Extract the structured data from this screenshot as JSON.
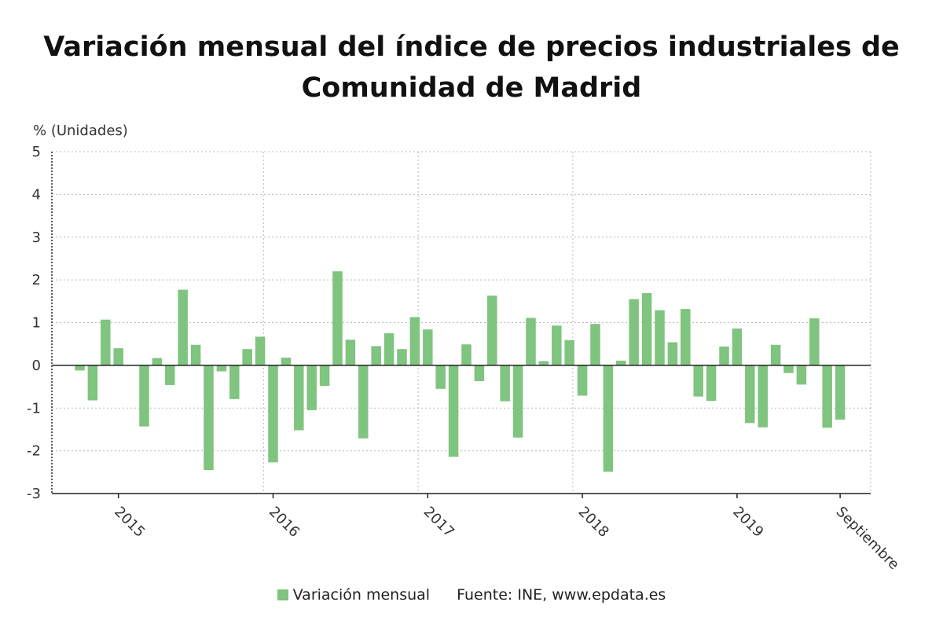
{
  "title_line1": "Variación mensual del índice de precios industriales de",
  "title_line2": "Comunidad de Madrid",
  "colors": {
    "bar": "#7fc47f",
    "grid": "#b8b8b8",
    "axis": "#222222"
  },
  "legend": {
    "label": "Variación mensual",
    "source": "Fuente: INE, www.epdata.es"
  },
  "chart_data": {
    "type": "bar",
    "title": "Variación mensual del índice de precios industriales de Comunidad de Madrid",
    "ylabel": "% (Unidades)",
    "ylim": [
      -3,
      5
    ],
    "yticks": [
      5,
      4,
      3,
      2,
      1,
      0,
      -1,
      -2,
      -3
    ],
    "grid": true,
    "legend_position": "bottom",
    "x_tick_labels": [
      "2015",
      "2016",
      "2017",
      "2018",
      "2019",
      "Septiembre"
    ],
    "x_tick_months": [
      "2015-01",
      "2016-01",
      "2017-01",
      "2018-01",
      "2019-01",
      "2019-09"
    ],
    "categories": [
      "2014-10",
      "2014-11",
      "2014-12",
      "2015-01",
      "2015-02",
      "2015-03",
      "2015-04",
      "2015-05",
      "2015-06",
      "2015-07",
      "2015-08",
      "2015-09",
      "2015-10",
      "2015-11",
      "2015-12",
      "2016-01",
      "2016-02",
      "2016-03",
      "2016-04",
      "2016-05",
      "2016-06",
      "2016-07",
      "2016-08",
      "2016-09",
      "2016-10",
      "2016-11",
      "2016-12",
      "2017-01",
      "2017-02",
      "2017-03",
      "2017-04",
      "2017-05",
      "2017-06",
      "2017-07",
      "2017-08",
      "2017-09",
      "2017-10",
      "2017-11",
      "2017-12",
      "2018-01",
      "2018-02",
      "2018-03",
      "2018-04",
      "2018-05",
      "2018-06",
      "2018-07",
      "2018-08",
      "2018-09",
      "2018-10",
      "2018-11",
      "2018-12",
      "2019-01",
      "2019-02",
      "2019-03",
      "2019-04",
      "2019-05",
      "2019-06",
      "2019-07",
      "2019-08",
      "2019-09"
    ],
    "series": [
      {
        "name": "Variación mensual",
        "values": [
          -0.12,
          -0.82,
          1.07,
          0.4,
          0.0,
          -1.43,
          0.17,
          -0.46,
          1.77,
          0.48,
          -2.45,
          -0.14,
          -0.79,
          0.38,
          0.67,
          -2.27,
          0.18,
          -1.52,
          -1.05,
          -0.48,
          2.2,
          0.6,
          -1.71,
          0.45,
          0.75,
          0.38,
          1.13,
          0.84,
          -0.55,
          -2.14,
          0.49,
          -0.37,
          1.63,
          -0.84,
          -1.69,
          1.11,
          0.1,
          0.93,
          0.59,
          -0.71,
          0.97,
          -2.49,
          0.11,
          1.55,
          1.69,
          1.29,
          0.54,
          1.32,
          -0.73,
          -0.83,
          0.44,
          0.86,
          -1.35,
          -1.45,
          0.48,
          -0.18,
          -0.45,
          1.1,
          -1.46,
          -1.27
        ]
      }
    ]
  }
}
